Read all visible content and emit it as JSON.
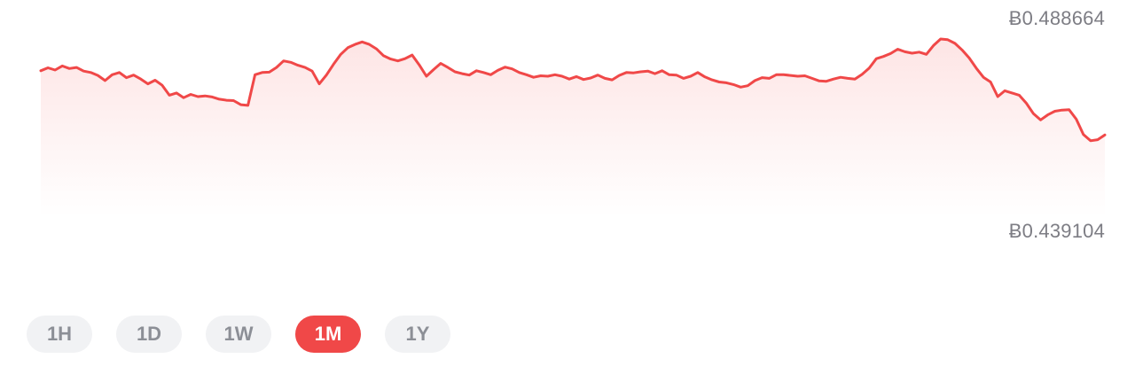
{
  "price": {
    "high_label": "Ƀ0.488664",
    "low_label": "Ƀ0.439104"
  },
  "ranges": {
    "items": [
      "1H",
      "1D",
      "1W",
      "1M",
      "1Y"
    ],
    "active": "1M"
  },
  "colors": {
    "line": "#f04848",
    "fill_top": "#fde3e3",
    "active_button": "#f04848",
    "inactive_button": "#f1f2f4",
    "label": "#7d7d84"
  },
  "chart_data": {
    "type": "area",
    "title": "",
    "xlabel": "",
    "ylabel": "",
    "ylim": [
      0.439104,
      0.488664
    ],
    "grid": false,
    "series": [
      {
        "values": [
          0.4773,
          0.4781,
          0.4775,
          0.4786,
          0.4779,
          0.4782,
          0.4772,
          0.4768,
          0.476,
          0.4746,
          0.4762,
          0.4768,
          0.4754,
          0.4761,
          0.475,
          0.4737,
          0.4747,
          0.4733,
          0.4706,
          0.4712,
          0.4699,
          0.4708,
          0.4702,
          0.4704,
          0.4701,
          0.4695,
          0.4692,
          0.4691,
          0.468,
          0.4678,
          0.4762,
          0.4768,
          0.4769,
          0.4782,
          0.48,
          0.4796,
          0.4788,
          0.4782,
          0.4772,
          0.4737,
          0.4761,
          0.4791,
          0.4818,
          0.4836,
          0.4845,
          0.4852,
          0.4845,
          0.4833,
          0.4814,
          0.4805,
          0.48,
          0.4806,
          0.4816,
          0.4789,
          0.4758,
          0.4776,
          0.4793,
          0.4782,
          0.477,
          0.4765,
          0.4761,
          0.4773,
          0.4768,
          0.4762,
          0.4774,
          0.4783,
          0.4778,
          0.4768,
          0.4762,
          0.4755,
          0.4759,
          0.4758,
          0.4762,
          0.4758,
          0.475,
          0.4757,
          0.4749,
          0.4753,
          0.4761,
          0.4752,
          0.4748,
          0.476,
          0.4768,
          0.4767,
          0.477,
          0.4772,
          0.4765,
          0.4773,
          0.4762,
          0.4761,
          0.4752,
          0.4758,
          0.4768,
          0.4756,
          0.4748,
          0.4742,
          0.474,
          0.4735,
          0.4728,
          0.4732,
          0.4746,
          0.4754,
          0.4752,
          0.4762,
          0.4762,
          0.476,
          0.4758,
          0.4759,
          0.4752,
          0.4745,
          0.4744,
          0.475,
          0.4755,
          0.4752,
          0.475,
          0.4763,
          0.478,
          0.4806,
          0.4812,
          0.482,
          0.4832,
          0.4825,
          0.4821,
          0.4824,
          0.4818,
          0.4842,
          0.486,
          0.4858,
          0.4848,
          0.483,
          0.4808,
          0.478,
          0.4755,
          0.4742,
          0.4702,
          0.4718,
          0.4712,
          0.4706,
          0.4684,
          0.4655,
          0.4638,
          0.4652,
          0.4662,
          0.4665,
          0.4666,
          0.464,
          0.4598,
          0.4581,
          0.4584,
          0.4597
        ]
      }
    ]
  }
}
